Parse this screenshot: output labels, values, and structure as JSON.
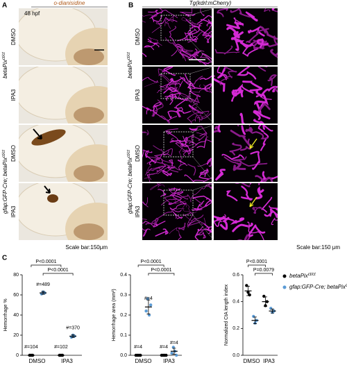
{
  "panels": {
    "a": {
      "label": "A",
      "title": "o-dianisidine",
      "stage": "48 hpf",
      "rows": [
        "DMSO",
        "IPA3",
        "DMSO",
        "IPA3"
      ],
      "groups": [
        {
          "text": "betaPix",
          "sup": "ct/ct"
        },
        {
          "text": "gfap:GFP-Cre; betaPix",
          "sup": "ct/ct"
        }
      ],
      "scale_bar": "Scale bar:150μm"
    },
    "b": {
      "label": "B",
      "title": "Tg(kdrl:mCherry)",
      "rows": [
        "DMSO",
        "IPA3",
        "DMSO",
        "IPA3"
      ],
      "groups": [
        {
          "text": "betaPix",
          "sup": "ct/ct"
        },
        {
          "text": "gfap:GFP-Cre; betaPix",
          "sup": "ct/ct"
        }
      ],
      "scale_bar": "Scale bar:150 μm"
    },
    "c": {
      "label": "C"
    }
  },
  "chart_data": [
    {
      "type": "dot",
      "ylabel": "Hemorrhage %",
      "categories": [
        "DMSO",
        "IPA3"
      ],
      "ylim": [
        0,
        80
      ],
      "yticks": [
        0,
        20,
        40,
        60,
        80
      ],
      "legend": false,
      "series": [
        {
          "color": "#000000",
          "values": [
            0,
            0
          ],
          "errors": [
            0,
            0
          ],
          "points": [
            [
              0,
              0,
              0
            ],
            [
              0,
              0,
              0
            ]
          ],
          "n_labels": [
            "#=104",
            "#=102"
          ]
        },
        {
          "color": "#5b9bd5",
          "values": [
            62,
            19
          ],
          "errors": [
            1.5,
            1.5
          ],
          "points": [
            [
              61,
              63,
              62
            ],
            [
              18,
              20,
              19
            ]
          ],
          "n_labels": [
            "#=489",
            "#=370"
          ]
        }
      ],
      "annotations": [
        {
          "text": "P<0.0001"
        },
        {
          "text": "P<0.0001"
        }
      ]
    },
    {
      "type": "dot",
      "ylabel": "Hemorrhage area (mm²)",
      "categories": [
        "DMSO",
        "IPA3"
      ],
      "ylim": [
        0,
        0.4
      ],
      "yticks": [
        {
          "value": 0,
          "label": "0.0"
        },
        0.1,
        0.2,
        0.3,
        0.4
      ],
      "legend": false,
      "series": [
        {
          "color": "#000000",
          "values": [
            0,
            0
          ],
          "errors": [
            0,
            0
          ],
          "points": [
            [
              0,
              0,
              0,
              0
            ],
            [
              0,
              0,
              0,
              0
            ]
          ],
          "n_labels": [
            "#=4",
            "#=4"
          ]
        },
        {
          "color": "#5b9bd5",
          "values": [
            0.24,
            0.02
          ],
          "errors": [
            0.035,
            0.015
          ],
          "points": [
            [
              0.22,
              0.28,
              0.2,
              0.25
            ],
            [
              0.01,
              0.04,
              0.02,
              0
            ]
          ],
          "n_labels": [
            "#=4",
            "#=4"
          ]
        }
      ],
      "annotations": [
        {
          "text": "P<0.0001"
        },
        {
          "text": "P<0.0001"
        }
      ]
    },
    {
      "type": "dot",
      "ylabel": "Normalized CtA length index",
      "categories": [
        "DMSO",
        "IPA3"
      ],
      "ylim": [
        0,
        0.6
      ],
      "yticks": [
        {
          "value": 0,
          "label": "0.0"
        },
        0.2,
        0.4,
        0.6
      ],
      "legend": true,
      "series": [
        {
          "name": "betaPix",
          "name_sup": "ct/ct",
          "color": "#000000",
          "values": [
            0.48,
            0.4
          ],
          "errors": [
            0.035,
            0.035
          ],
          "points": [
            [
              0.52,
              0.47,
              0.45
            ],
            [
              0.44,
              0.37,
              0.4
            ]
          ]
        },
        {
          "name": "gfap:GFP-Cre; betaPix",
          "name_sup": "ct/ct",
          "color": "#5b9bd5",
          "values": [
            0.26,
            0.33
          ],
          "errors": [
            0.025,
            0.015
          ],
          "points": [
            [
              0.29,
              0.24,
              0.26
            ],
            [
              0.35,
              0.32,
              0.33
            ]
          ]
        }
      ],
      "annotations": [
        {
          "text": "P<0.0001"
        },
        {
          "text": "P=0.0079"
        }
      ]
    }
  ]
}
